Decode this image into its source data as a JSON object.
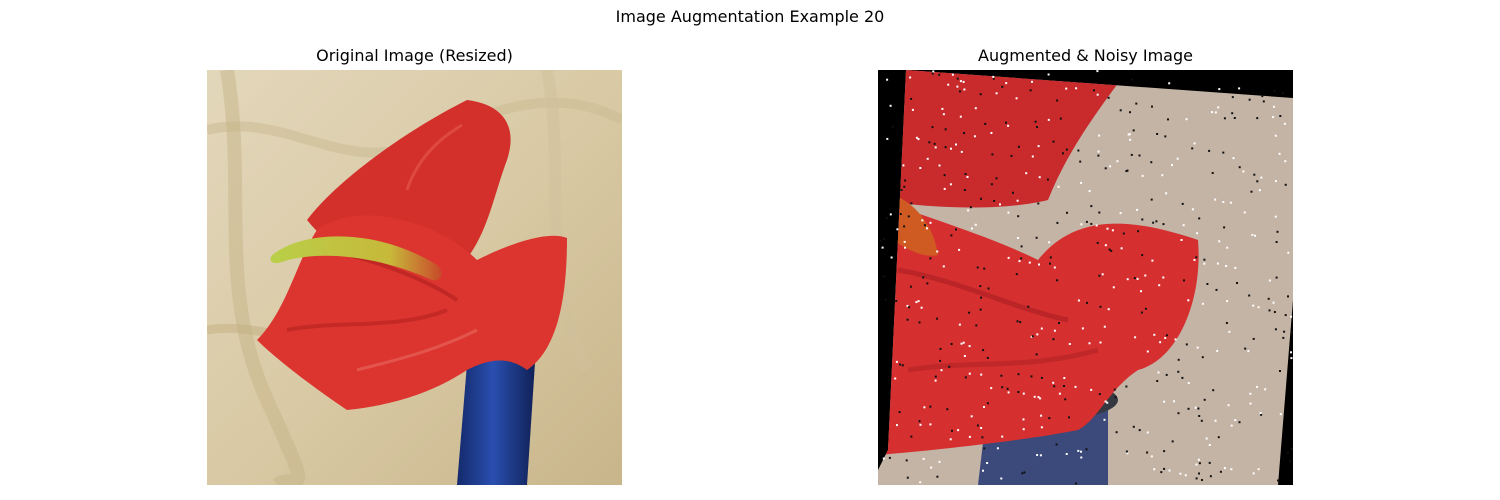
{
  "figure": {
    "title": "Image Augmentation Example 20"
  },
  "panels": [
    {
      "title": "Original Image (Resized)",
      "picture": "red-anthurium-flower-in-blue-vase"
    },
    {
      "title": "Augmented & Noisy Image",
      "picture": "rotated-zoomed-red-anthurium-with-salt-and-pepper-noise"
    }
  ],
  "colors": {
    "background_cloth": "#d8c9a6",
    "flower_red": "#d8312c",
    "spadix_green": "#a9c23a",
    "vase_blue": "#1e3a8a",
    "augmented_fill": "#000000"
  }
}
